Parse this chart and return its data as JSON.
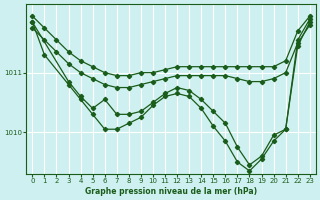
{
  "title": "Graphe pression niveau de la mer (hPa)",
  "bg_color": "#cff0f0",
  "line_color": "#1a5c1a",
  "grid_color": "#ffffff",
  "xlim": [
    -0.5,
    23.5
  ],
  "ylim": [
    1009.3,
    1012.15
  ],
  "yticks": [
    1010,
    1011
  ],
  "xticks": [
    0,
    1,
    2,
    3,
    4,
    5,
    6,
    7,
    8,
    9,
    10,
    11,
    12,
    13,
    14,
    15,
    16,
    17,
    18,
    19,
    20,
    21,
    22,
    23
  ],
  "series": [
    {
      "x": [
        0,
        1,
        2,
        3,
        4,
        5,
        6,
        7,
        8,
        9,
        10,
        11,
        12,
        13,
        14,
        15,
        16,
        17,
        18,
        19,
        20,
        21,
        22,
        23
      ],
      "y": [
        1011.95,
        1011.75,
        1011.55,
        1011.35,
        1011.2,
        1011.1,
        1011.0,
        1010.95,
        1010.95,
        1011.0,
        1011.0,
        1011.05,
        1011.1,
        1011.1,
        1011.1,
        1011.1,
        1011.1,
        1011.1,
        1011.1,
        1011.1,
        1011.1,
        1011.2,
        1011.7,
        1011.95
      ]
    },
    {
      "x": [
        0,
        1,
        2,
        3,
        4,
        5,
        6,
        7,
        8,
        9,
        10,
        11,
        12,
        13,
        14,
        15,
        16,
        17,
        18,
        19,
        20,
        21,
        22,
        23
      ],
      "y": [
        1011.75,
        1011.55,
        1011.35,
        1011.15,
        1011.0,
        1010.9,
        1010.8,
        1010.75,
        1010.75,
        1010.8,
        1010.85,
        1010.9,
        1010.95,
        1010.95,
        1010.95,
        1010.95,
        1010.95,
        1010.9,
        1010.85,
        1010.85,
        1010.9,
        1011.0,
        1011.5,
        1011.8
      ]
    },
    {
      "x": [
        0,
        3,
        4,
        5,
        6,
        7,
        8,
        9,
        10,
        11,
        12,
        13,
        14,
        15,
        16,
        17,
        18,
        19,
        20,
        21,
        22,
        23
      ],
      "y": [
        1011.85,
        1010.85,
        1010.6,
        1010.4,
        1010.55,
        1010.3,
        1010.3,
        1010.35,
        1010.5,
        1010.65,
        1010.75,
        1010.7,
        1010.55,
        1010.35,
        1010.15,
        1009.75,
        1009.45,
        1009.6,
        1009.95,
        1010.05,
        1011.55,
        1011.9
      ]
    },
    {
      "x": [
        0,
        1,
        3,
        4,
        5,
        6,
        7,
        8,
        9,
        10,
        11,
        12,
        13,
        14,
        15,
        16,
        17,
        18,
        19,
        20,
        21,
        22,
        23
      ],
      "y": [
        1011.85,
        1011.3,
        1010.8,
        1010.55,
        1010.3,
        1010.05,
        1010.05,
        1010.15,
        1010.25,
        1010.45,
        1010.6,
        1010.65,
        1010.6,
        1010.4,
        1010.1,
        1009.85,
        1009.5,
        1009.35,
        1009.55,
        1009.85,
        1010.05,
        1011.45,
        1011.85
      ]
    }
  ]
}
